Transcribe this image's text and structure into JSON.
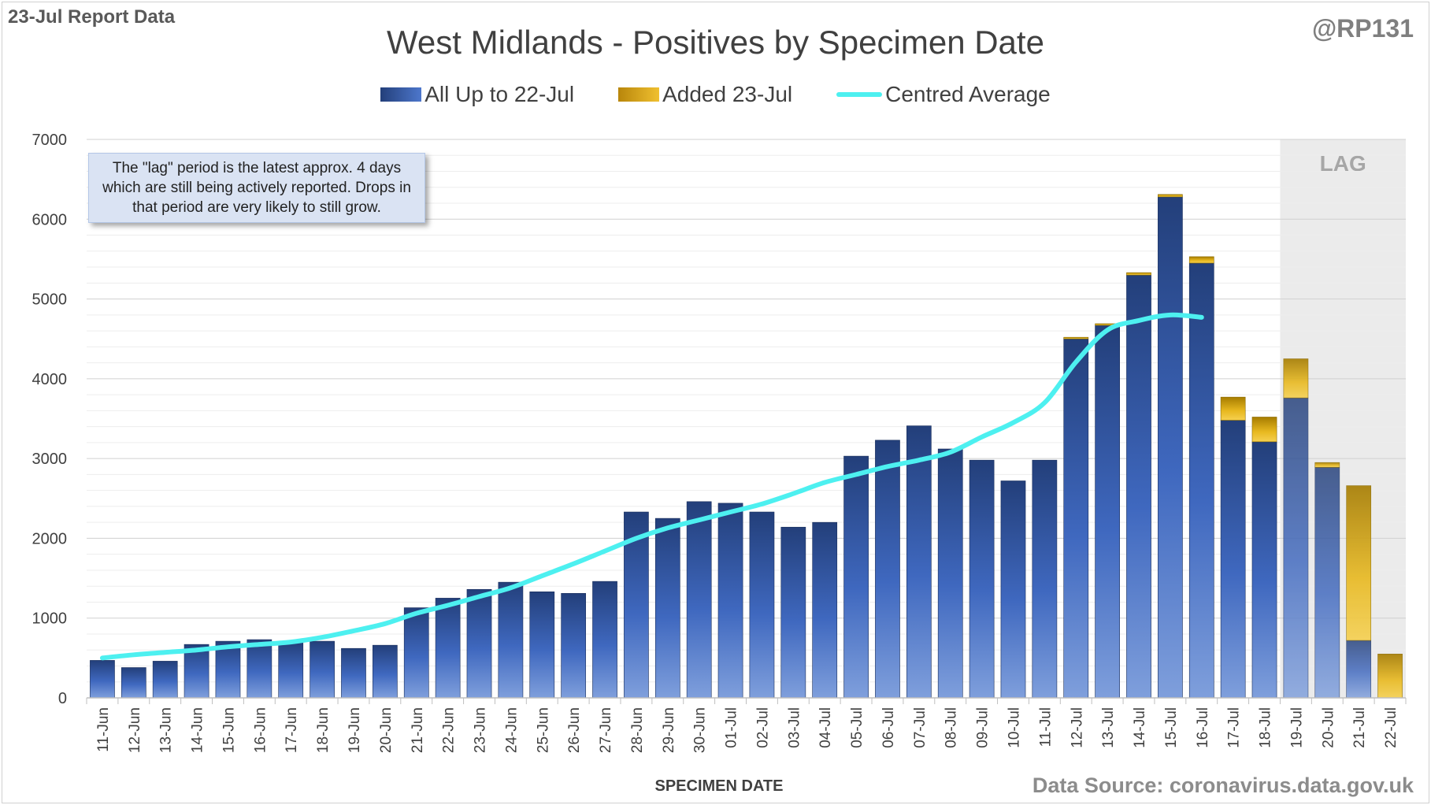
{
  "header": {
    "report_label": "23-Jul Report Data",
    "handle": "@RP131",
    "title": "West Midlands - Positives by Specimen Date",
    "source": "Data Source: coronavirus.data.gov.uk"
  },
  "note": "The \"lag\" period is the latest approx. 4 days which are still being actively reported. Drops in that period are very likely to still grow.",
  "legend": {
    "blue": "All Up to 22-Jul",
    "gold": "Added 23-Jul",
    "line": "Centred Average"
  },
  "colors": {
    "blue_dark": "#233f7a",
    "blue_light": "#6e93d8",
    "gold_dark": "#b8860b",
    "gold_light": "#f0c030",
    "average_line": "#4df0f0",
    "lag_band": "#ebebeb"
  },
  "chart_data": {
    "type": "bar",
    "stacked": true,
    "title": "West Midlands - Positives by Specimen Date",
    "xlabel": "SPECIMEN DATE",
    "ylabel": "",
    "ylim": [
      0,
      7000
    ],
    "yticks": [
      0,
      1000,
      2000,
      3000,
      4000,
      5000,
      6000,
      7000
    ],
    "grid": true,
    "legend_position": "top",
    "lag_label": "LAG",
    "lag_categories": [
      "19-Jul",
      "20-Jul",
      "21-Jul",
      "22-Jul"
    ],
    "categories": [
      "11-Jun",
      "12-Jun",
      "13-Jun",
      "14-Jun",
      "15-Jun",
      "16-Jun",
      "17-Jun",
      "18-Jun",
      "19-Jun",
      "20-Jun",
      "21-Jun",
      "22-Jun",
      "23-Jun",
      "24-Jun",
      "25-Jun",
      "26-Jun",
      "27-Jun",
      "28-Jun",
      "29-Jun",
      "30-Jun",
      "01-Jul",
      "02-Jul",
      "03-Jul",
      "04-Jul",
      "05-Jul",
      "06-Jul",
      "07-Jul",
      "08-Jul",
      "09-Jul",
      "10-Jul",
      "11-Jul",
      "12-Jul",
      "13-Jul",
      "14-Jul",
      "15-Jul",
      "16-Jul",
      "17-Jul",
      "18-Jul",
      "19-Jul",
      "20-Jul",
      "21-Jul",
      "22-Jul"
    ],
    "series": [
      {
        "name": "All Up to 22-Jul",
        "values": [
          470,
          380,
          460,
          670,
          710,
          730,
          690,
          710,
          620,
          660,
          1130,
          1250,
          1360,
          1450,
          1330,
          1310,
          1460,
          2330,
          2250,
          2460,
          2440,
          2330,
          2140,
          2200,
          3030,
          3230,
          3410,
          3120,
          2980,
          2720,
          2980,
          4500,
          4670,
          5300,
          6280,
          5450,
          3480,
          3210,
          3760,
          2890,
          720,
          0
        ]
      },
      {
        "name": "Added 23-Jul",
        "values": [
          0,
          0,
          0,
          0,
          0,
          0,
          0,
          0,
          0,
          0,
          0,
          0,
          0,
          0,
          0,
          0,
          0,
          0,
          0,
          0,
          0,
          0,
          0,
          0,
          0,
          0,
          0,
          0,
          0,
          0,
          0,
          20,
          20,
          30,
          30,
          80,
          290,
          310,
          490,
          60,
          1940,
          550
        ]
      },
      {
        "name": "Centred Average",
        "type": "line",
        "values": [
          500,
          540,
          570,
          600,
          640,
          670,
          700,
          760,
          840,
          930,
          1060,
          1160,
          1270,
          1380,
          1530,
          1680,
          1840,
          2000,
          2130,
          2230,
          2330,
          2430,
          2560,
          2700,
          2800,
          2900,
          2980,
          3080,
          3270,
          3450,
          3700,
          4210,
          4610,
          4730,
          4800,
          4770,
          null,
          null,
          null,
          null,
          null,
          null
        ]
      }
    ]
  }
}
